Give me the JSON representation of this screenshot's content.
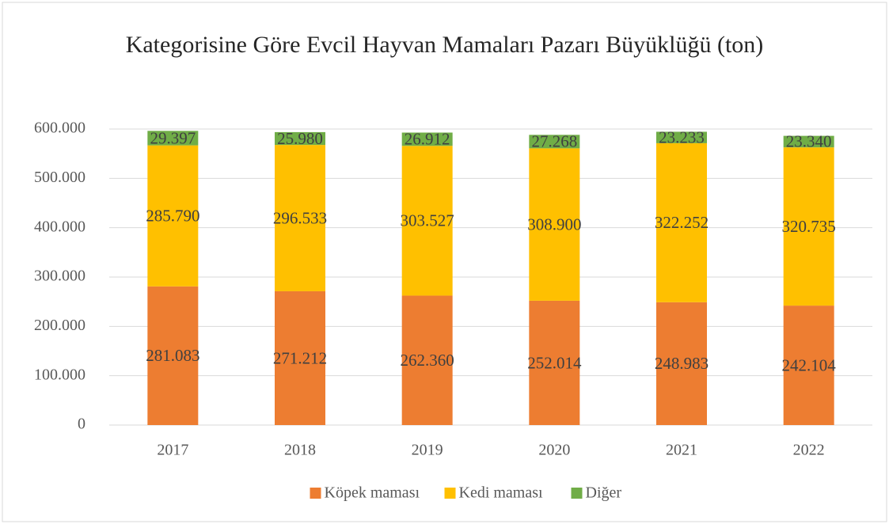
{
  "chart_data": {
    "type": "stacked_bar",
    "title": "Kategorisine Göre Evcil Hayvan Mamaları Pazarı Büyüklüğü (ton)",
    "categories": [
      "2017",
      "2018",
      "2019",
      "2020",
      "2021",
      "2022"
    ],
    "series": [
      {
        "name": "Köpek maması",
        "color": "#ed7d31",
        "values": [
          281083,
          271212,
          262360,
          252014,
          248983,
          242104
        ],
        "value_labels": [
          "281.083",
          "271.212",
          "262.360",
          "252.014",
          "248.983",
          "242.104"
        ]
      },
      {
        "name": "Kedi maması",
        "color": "#ffc000",
        "values": [
          285790,
          296533,
          303527,
          308900,
          322252,
          320735
        ],
        "value_labels": [
          "285.790",
          "296.533",
          "303.527",
          "308.900",
          "322.252",
          "320.735"
        ]
      },
      {
        "name": "Diğer",
        "color": "#70ad47",
        "values": [
          29397,
          25980,
          26912,
          27268,
          23233,
          23340
        ],
        "value_labels": [
          "29.397",
          "25.980",
          "26.912",
          "27.268",
          "23.233",
          "23.340"
        ]
      }
    ],
    "ylim": [
      0,
      600000
    ],
    "yticks": [
      0,
      {
        "value": 100000,
        "label": "100.000"
      },
      {
        "value": 200000,
        "label": "200.000"
      },
      {
        "value": 300000,
        "label": "300.000"
      },
      {
        "value": 400000,
        "label": "400.000"
      },
      {
        "value": 500000,
        "label": "500.000"
      },
      {
        "value": 600000,
        "label": "600.000"
      }
    ],
    "grid": true,
    "legend": "bottom"
  }
}
